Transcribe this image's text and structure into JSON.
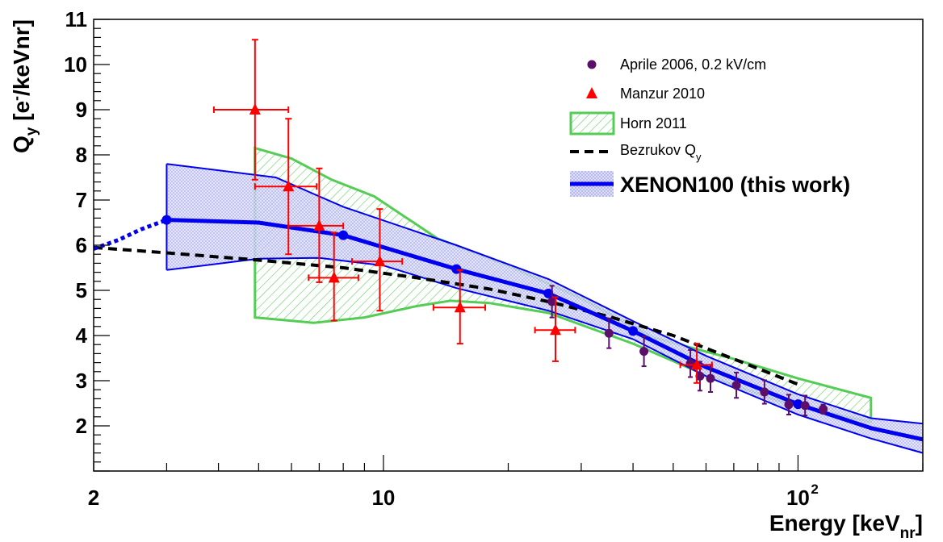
{
  "chart_data": {
    "type": "scatter",
    "xlabel": "Energy [keV_nr]",
    "xlabel_parts": {
      "main": "Energy [keV",
      "sub": "nr",
      "close": "]"
    },
    "ylabel": "Q_y [e-/keVnr]",
    "ylabel_parts": {
      "q": "Q",
      "sub": "y",
      "rest": " [e",
      "sup": "-",
      "end": "/keVnr]"
    },
    "x_scale": "log",
    "xlim": [
      2,
      200
    ],
    "ylim": [
      1,
      11
    ],
    "x_ticks": [
      {
        "value": 2,
        "label": "2"
      },
      {
        "value": 10,
        "label": "10"
      },
      {
        "value": 100,
        "label": "10",
        "sup": "2"
      }
    ],
    "y_ticks": [
      {
        "value": 2,
        "label": "2"
      },
      {
        "value": 3,
        "label": "3"
      },
      {
        "value": 4,
        "label": "4"
      },
      {
        "value": 5,
        "label": "5"
      },
      {
        "value": 6,
        "label": "6"
      },
      {
        "value": 7,
        "label": "7"
      },
      {
        "value": 8,
        "label": "8"
      },
      {
        "value": 9,
        "label": "9"
      },
      {
        "value": 10,
        "label": "10"
      },
      {
        "value": 11,
        "label": "11"
      }
    ],
    "legend": {
      "position": "top-right",
      "entries": [
        {
          "label": "Aprile 2006, 0.2 kV/cm",
          "marker": "circle",
          "color": "#5b0f6a"
        },
        {
          "label": "Manzur 2010",
          "marker": "triangle",
          "color": "#ff0000"
        },
        {
          "label": "Horn 2011",
          "marker": "hatched-box",
          "color": "#55cc55"
        },
        {
          "label": "Bezrukov Q",
          "label_sub": "y",
          "marker": "dashed-line",
          "color": "#000000"
        },
        {
          "label": "XENON100 (this work)",
          "marker": "band-line",
          "color": "#0000ee"
        }
      ]
    },
    "series": [
      {
        "name": "Aprile 2006, 0.2 kV/cm",
        "kind": "points",
        "color": "#5b0f6a",
        "points": [
          {
            "x": 25.5,
            "y": 4.75,
            "err": 0.35
          },
          {
            "x": 35.0,
            "y": 4.05,
            "err": 0.33
          },
          {
            "x": 42.5,
            "y": 3.65,
            "err": 0.33
          },
          {
            "x": 55.0,
            "y": 3.38,
            "err": 0.3
          },
          {
            "x": 58.0,
            "y": 3.1,
            "err": 0.32
          },
          {
            "x": 61.5,
            "y": 3.05,
            "err": 0.3
          },
          {
            "x": 71.0,
            "y": 2.9,
            "err": 0.28
          },
          {
            "x": 83.0,
            "y": 2.75,
            "err": 0.26
          },
          {
            "x": 95.0,
            "y": 2.47,
            "err": 0.22
          },
          {
            "x": 104.0,
            "y": 2.45,
            "err": 0.22
          },
          {
            "x": 115.0,
            "y": 2.37,
            "err": 0.1
          }
        ]
      },
      {
        "name": "Manzur 2010",
        "kind": "points",
        "color": "#ff0000",
        "points": [
          {
            "x": 4.9,
            "y": 9.0,
            "xlo": 3.9,
            "xhi": 5.9,
            "ylo": 7.45,
            "yhi": 10.55
          },
          {
            "x": 5.9,
            "y": 7.3,
            "xlo": 4.9,
            "xhi": 6.9,
            "ylo": 5.8,
            "yhi": 8.8
          },
          {
            "x": 7.0,
            "y": 6.43,
            "xlo": 5.9,
            "xhi": 8.0,
            "ylo": 5.18,
            "yhi": 7.7
          },
          {
            "x": 7.6,
            "y": 5.28,
            "xlo": 6.6,
            "xhi": 8.7,
            "ylo": 4.33,
            "yhi": 6.28
          },
          {
            "x": 9.8,
            "y": 5.64,
            "xlo": 8.4,
            "xhi": 11.1,
            "ylo": 4.55,
            "yhi": 6.8
          },
          {
            "x": 15.3,
            "y": 4.62,
            "xlo": 13.2,
            "xhi": 17.6,
            "ylo": 3.82,
            "yhi": 5.45
          },
          {
            "x": 26.0,
            "y": 4.12,
            "xlo": 23.2,
            "xhi": 29.0,
            "ylo": 3.43,
            "yhi": 4.85
          },
          {
            "x": 57.0,
            "y": 3.35,
            "xlo": 52.0,
            "xhi": 62.0,
            "ylo": 2.95,
            "yhi": 3.82
          }
        ]
      },
      {
        "name": "Horn 2011",
        "kind": "band",
        "color": "#55cc55",
        "upper": [
          [
            4.9,
            8.15
          ],
          [
            6.0,
            7.92
          ],
          [
            7.5,
            7.45
          ],
          [
            9.5,
            7.08
          ],
          [
            13.5,
            6.15
          ],
          [
            20.0,
            5.55
          ],
          [
            30.0,
            4.82
          ],
          [
            45.0,
            3.95
          ],
          [
            70.0,
            3.48
          ],
          [
            100.0,
            3.05
          ],
          [
            150.0,
            2.62
          ]
        ],
        "lower": [
          [
            4.9,
            4.4
          ],
          [
            6.8,
            4.28
          ],
          [
            9.0,
            4.4
          ],
          [
            12.0,
            4.65
          ],
          [
            14.5,
            4.77
          ],
          [
            18.0,
            4.72
          ],
          [
            25.0,
            4.5
          ],
          [
            40.0,
            3.82
          ],
          [
            60.0,
            3.12
          ],
          [
            90.0,
            2.55
          ],
          [
            150.0,
            2.08
          ]
        ]
      },
      {
        "name": "Bezrukov Qy",
        "kind": "dashed-line",
        "color": "#000000",
        "points": [
          [
            2.0,
            5.95
          ],
          [
            3.0,
            5.83
          ],
          [
            5.0,
            5.67
          ],
          [
            8.0,
            5.5
          ],
          [
            12.0,
            5.28
          ],
          [
            18.0,
            5.03
          ],
          [
            25.0,
            4.75
          ],
          [
            35.0,
            4.42
          ],
          [
            50.0,
            4.0
          ],
          [
            70.0,
            3.48
          ],
          [
            100.0,
            2.92
          ]
        ]
      },
      {
        "name": "XENON100 (this work)",
        "kind": "band-line",
        "color": "#0000ee",
        "band_color": "#c4c6ef",
        "band_upper": [
          [
            3.0,
            7.8
          ],
          [
            5.5,
            7.5
          ],
          [
            8.0,
            6.85
          ],
          [
            15.0,
            6.0
          ],
          [
            25.0,
            5.25
          ],
          [
            40.0,
            4.32
          ],
          [
            60.0,
            3.55
          ],
          [
            100.0,
            2.7
          ],
          [
            150.0,
            2.17
          ],
          [
            200.0,
            2.05
          ]
        ],
        "band_lower": [
          [
            3.0,
            5.45
          ],
          [
            5.0,
            5.7
          ],
          [
            7.0,
            5.72
          ],
          [
            10.0,
            5.55
          ],
          [
            15.0,
            5.05
          ],
          [
            25.0,
            4.55
          ],
          [
            40.0,
            3.92
          ],
          [
            60.0,
            3.1
          ],
          [
            100.0,
            2.25
          ],
          [
            150.0,
            1.72
          ],
          [
            200.0,
            1.4
          ]
        ],
        "line": [
          [
            3.0,
            6.56
          ],
          [
            5.0,
            6.5
          ],
          [
            8.0,
            6.22
          ],
          [
            15.0,
            5.47
          ],
          [
            25.0,
            4.93
          ],
          [
            40.0,
            4.1
          ],
          [
            60.0,
            3.3
          ],
          [
            100.0,
            2.48
          ],
          [
            150.0,
            1.95
          ],
          [
            200.0,
            1.7
          ]
        ],
        "knots": [
          [
            3.0,
            6.56
          ],
          [
            8.0,
            6.22
          ],
          [
            15.0,
            5.47
          ],
          [
            25.0,
            4.93
          ],
          [
            40.0,
            4.1
          ],
          [
            100.0,
            2.48
          ]
        ],
        "dotted_extrapolation": [
          [
            2.0,
            5.92
          ],
          [
            2.3,
            6.12
          ],
          [
            2.6,
            6.35
          ],
          [
            3.0,
            6.56
          ]
        ]
      }
    ]
  }
}
